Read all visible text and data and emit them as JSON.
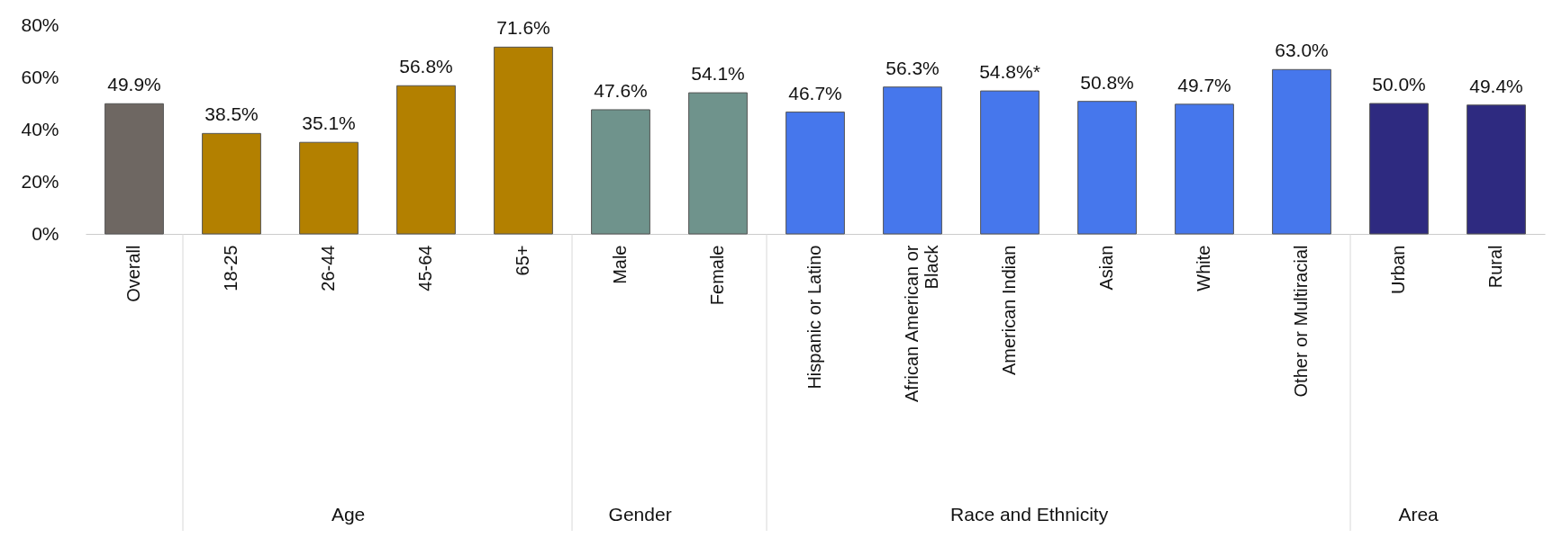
{
  "chart_data": {
    "type": "bar",
    "categories": [
      "Overall",
      "18-25",
      "26-44",
      "45-64",
      "65+",
      "Male",
      "Female",
      "Hispanic or Latino",
      "African American or Black",
      "American Indian",
      "Asian",
      "White",
      "Other or Multiracial",
      "Urban",
      "Rural"
    ],
    "values": [
      49.9,
      38.5,
      35.1,
      56.8,
      71.6,
      47.6,
      54.1,
      46.7,
      56.3,
      54.8,
      50.8,
      49.7,
      63.0,
      50.0,
      49.4
    ],
    "value_labels": [
      "49.9%",
      "38.5%",
      "35.1%",
      "56.8%",
      "71.6%",
      "47.6%",
      "54.1%",
      "46.7%",
      "56.3%",
      "54.8%*",
      "50.8%",
      "49.7%",
      "63.0%",
      "50.0%",
      "49.4%"
    ],
    "colors": [
      "#6e6762",
      "#b38000",
      "#b38000",
      "#b38000",
      "#b38000",
      "#6f938c",
      "#6f938c",
      "#4677ec",
      "#4677ec",
      "#4677ec",
      "#4677ec",
      "#4677ec",
      "#4677ec",
      "#2e2a80",
      "#2e2a80"
    ],
    "annotations": [
      "Age",
      "Gender",
      "Race and Ethnicity",
      "Area"
    ],
    "ylim": [
      0,
      80
    ],
    "yticks": [
      {
        "value": 0,
        "label": "0%"
      },
      {
        "value": 20,
        "label": "20%"
      },
      {
        "value": 40,
        "label": "40%"
      },
      {
        "value": 60,
        "label": "60%"
      },
      {
        "value": 80,
        "label": "80%"
      }
    ],
    "grid": false
  }
}
